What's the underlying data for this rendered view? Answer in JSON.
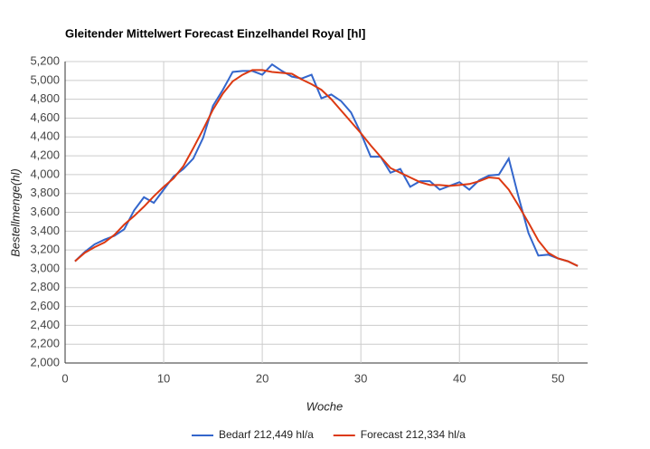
{
  "chart_data": {
    "type": "line",
    "title": "Gleitender Mittelwert Forecast Einzelhandel Royal [hl]",
    "x_label": "Woche",
    "y_label": "Bestellmenge(hl)",
    "x": [
      1,
      2,
      3,
      4,
      5,
      6,
      7,
      8,
      9,
      10,
      11,
      12,
      13,
      14,
      15,
      16,
      17,
      18,
      19,
      20,
      21,
      22,
      23,
      24,
      25,
      26,
      27,
      28,
      29,
      30,
      31,
      32,
      33,
      34,
      35,
      36,
      37,
      38,
      39,
      40,
      41,
      42,
      43,
      44,
      45,
      46,
      47,
      48,
      49,
      50,
      51,
      52
    ],
    "series": [
      {
        "name": "Bedarf 212,449 hl/a",
        "color": "#3366cc",
        "values": [
          3080,
          3180,
          3260,
          3310,
          3350,
          3420,
          3620,
          3760,
          3700,
          3840,
          3980,
          4060,
          4170,
          4390,
          4730,
          4900,
          5090,
          5100,
          5100,
          5060,
          5170,
          5100,
          5040,
          5020,
          5060,
          4810,
          4850,
          4780,
          4660,
          4440,
          4190,
          4190,
          4020,
          4060,
          3870,
          3930,
          3930,
          3840,
          3880,
          3920,
          3840,
          3940,
          3990,
          4000,
          4170,
          3760,
          3380,
          3140,
          3150,
          3110,
          3080,
          3030
        ]
      },
      {
        "name": "Forecast 212,334 hl/a",
        "color": "#dc3912",
        "values": [
          3080,
          3170,
          3230,
          3280,
          3360,
          3470,
          3560,
          3660,
          3770,
          3870,
          3960,
          4090,
          4280,
          4480,
          4690,
          4860,
          4990,
          5060,
          5110,
          5110,
          5090,
          5080,
          5070,
          5010,
          4960,
          4900,
          4800,
          4680,
          4560,
          4440,
          4310,
          4190,
          4070,
          4020,
          3970,
          3920,
          3890,
          3890,
          3880,
          3890,
          3900,
          3930,
          3970,
          3960,
          3840,
          3670,
          3490,
          3300,
          3170,
          3110,
          3080,
          3030
        ]
      }
    ],
    "xlim": [
      0,
      53
    ],
    "xticks": [
      0,
      10,
      20,
      30,
      40,
      50
    ],
    "ylim": [
      2000,
      5200
    ],
    "yticks": [
      {
        "value": 2000,
        "label": "2,000"
      },
      {
        "value": 2200,
        "label": "2,200"
      },
      {
        "value": 2400,
        "label": "2,400"
      },
      {
        "value": 2600,
        "label": "2,600"
      },
      {
        "value": 2800,
        "label": "2,800"
      },
      {
        "value": 3000,
        "label": "3,000"
      },
      {
        "value": 3200,
        "label": "3,200"
      },
      {
        "value": 3400,
        "label": "3,400"
      },
      {
        "value": 3600,
        "label": "3,600"
      },
      {
        "value": 3800,
        "label": "3,800"
      },
      {
        "value": 4000,
        "label": "4,000"
      },
      {
        "value": 4200,
        "label": "4,200"
      },
      {
        "value": 4400,
        "label": "4,400"
      },
      {
        "value": 4600,
        "label": "4,600"
      },
      {
        "value": 4800,
        "label": "4,800"
      },
      {
        "value": 5000,
        "label": "5,000"
      },
      {
        "value": 5200,
        "label": "5,200"
      }
    ],
    "grid": true,
    "legend": "bottom"
  }
}
